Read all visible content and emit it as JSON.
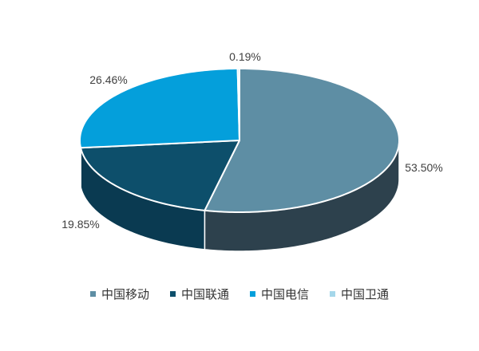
{
  "chart_data": {
    "type": "pie",
    "style": "3d",
    "title": "",
    "unit": "%",
    "legend_position": "bottom",
    "labels_shown": true,
    "categories": [
      "中国移动",
      "中国联通",
      "中国电信",
      "中国卫通"
    ],
    "values": [
      53.5,
      19.85,
      26.46,
      0.19
    ],
    "slices": [
      {
        "name": "中国移动",
        "value": 53.5,
        "label": "53.50%",
        "color": "#5E8EA4",
        "side_color": "#2D414D"
      },
      {
        "name": "中国联通",
        "value": 19.85,
        "label": "19.85%",
        "color": "#0D4F6B",
        "side_color": "#0A3A51"
      },
      {
        "name": "中国电信",
        "value": 26.46,
        "label": "26.46%",
        "color": "#049FDB",
        "side_color": "#056F9A"
      },
      {
        "name": "中国卫通",
        "value": 0.19,
        "label": "0.19%",
        "color": "#A5D7EA",
        "side_color": "#7FB8D4"
      }
    ],
    "separator_color": "#FFFFFF",
    "label_color": "#3F3F3F",
    "legend_text_color": "#333333"
  }
}
